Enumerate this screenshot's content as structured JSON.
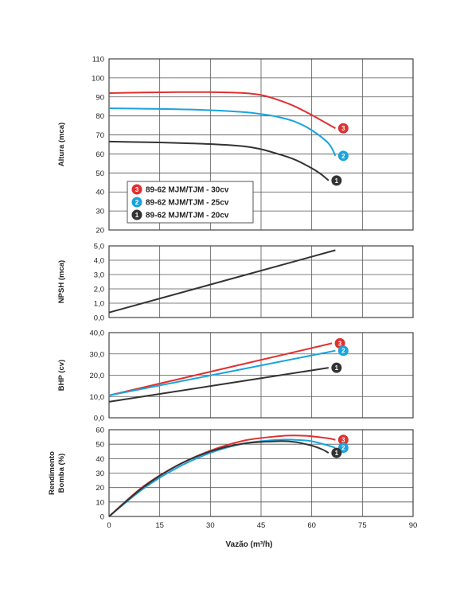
{
  "chart_data": {
    "type": "line",
    "xlabel": "Vazão (m³/h)",
    "x_ticks": [
      "0",
      "15",
      "30",
      "45",
      "60",
      "75",
      "90"
    ],
    "xlim": [
      0,
      90
    ],
    "colors": {
      "3": "#e03030",
      "2": "#1aa3dc",
      "1": "#333333"
    },
    "legend": [
      {
        "badge": "3",
        "label": "89-62 MJM/TJM - 30cv"
      },
      {
        "badge": "2",
        "label": "89-62 MJM/TJM - 25cv"
      },
      {
        "badge": "1",
        "label": "89-62 MJM/TJM - 20cv"
      }
    ],
    "panels": [
      {
        "ylabel": [
          "Altura (mca)"
        ],
        "ylim": [
          20,
          110
        ],
        "y_ticks": [
          "20",
          "30",
          "40",
          "50",
          "60",
          "70",
          "80",
          "90",
          "100",
          "110"
        ],
        "grid": true,
        "series": [
          {
            "badge": "3",
            "x": [
              0,
              10,
              20,
              30,
              40,
              45,
              50,
              55,
              60,
              65,
              67
            ],
            "y": [
              92,
              92.3,
              92.5,
              92.5,
              92,
              91,
              88.5,
              85,
              80.5,
              75.5,
              73.5
            ]
          },
          {
            "badge": "2",
            "x": [
              0,
              10,
              20,
              30,
              40,
              45,
              50,
              55,
              60,
              65,
              67
            ],
            "y": [
              84,
              83.8,
              83.5,
              83,
              82,
              81,
              79.5,
              77,
              72.5,
              65.5,
              59
            ]
          },
          {
            "badge": "1",
            "x": [
              0,
              10,
              20,
              30,
              40,
              45,
              50,
              55,
              60,
              63,
              65
            ],
            "y": [
              66.5,
              66.2,
              65.8,
              65.2,
              64,
              62.5,
              60,
              57,
              52.5,
              49,
              46
            ]
          }
        ]
      },
      {
        "ylabel": [
          "NPSH (mca)"
        ],
        "ylim": [
          0,
          5
        ],
        "y_ticks": [
          "0,0",
          "1,0",
          "2,0",
          "3,0",
          "4,0",
          "5,0"
        ],
        "grid": true,
        "series": [
          {
            "badge": "",
            "x": [
              0,
              67
            ],
            "y": [
              0.35,
              4.7
            ]
          }
        ]
      },
      {
        "ylabel": [
          "BHP (cv)"
        ],
        "ylim": [
          0,
          40
        ],
        "y_ticks": [
          "0,0",
          "10,0",
          "20,0",
          "30,0",
          "40,0"
        ],
        "grid": true,
        "series": [
          {
            "badge": "3",
            "x": [
              0,
              66
            ],
            "y": [
              10.5,
              35
            ]
          },
          {
            "badge": "2",
            "x": [
              0,
              67
            ],
            "y": [
              10.5,
              31.5
            ]
          },
          {
            "badge": "1",
            "x": [
              0,
              65
            ],
            "y": [
              7.5,
              23.5
            ]
          }
        ]
      },
      {
        "ylabel": [
          "Rendimento",
          "Bomba (%)"
        ],
        "ylim": [
          0,
          60
        ],
        "y_ticks": [
          "0",
          "10",
          "20",
          "30",
          "40",
          "50",
          "60"
        ],
        "grid": true,
        "series": [
          {
            "badge": "3",
            "x": [
              0,
              10,
              20,
              30,
              40,
              50,
              55,
              60,
              65,
              67
            ],
            "y": [
              0,
              20.5,
              35,
              45.5,
              52.5,
              55.5,
              56,
              55.5,
              54,
              53
            ]
          },
          {
            "badge": "2",
            "x": [
              0,
              10,
              20,
              30,
              40,
              50,
              55,
              60,
              65,
              67
            ],
            "y": [
              0,
              19,
              33.5,
              44,
              50.5,
              53,
              53,
              52,
              49,
              47.5
            ]
          },
          {
            "badge": "1",
            "x": [
              0,
              10,
              20,
              30,
              40,
              50,
              55,
              60,
              63,
              65
            ],
            "y": [
              0,
              20,
              35,
              45,
              50.5,
              52,
              51.5,
              49,
              46.5,
              44
            ]
          }
        ]
      }
    ]
  }
}
